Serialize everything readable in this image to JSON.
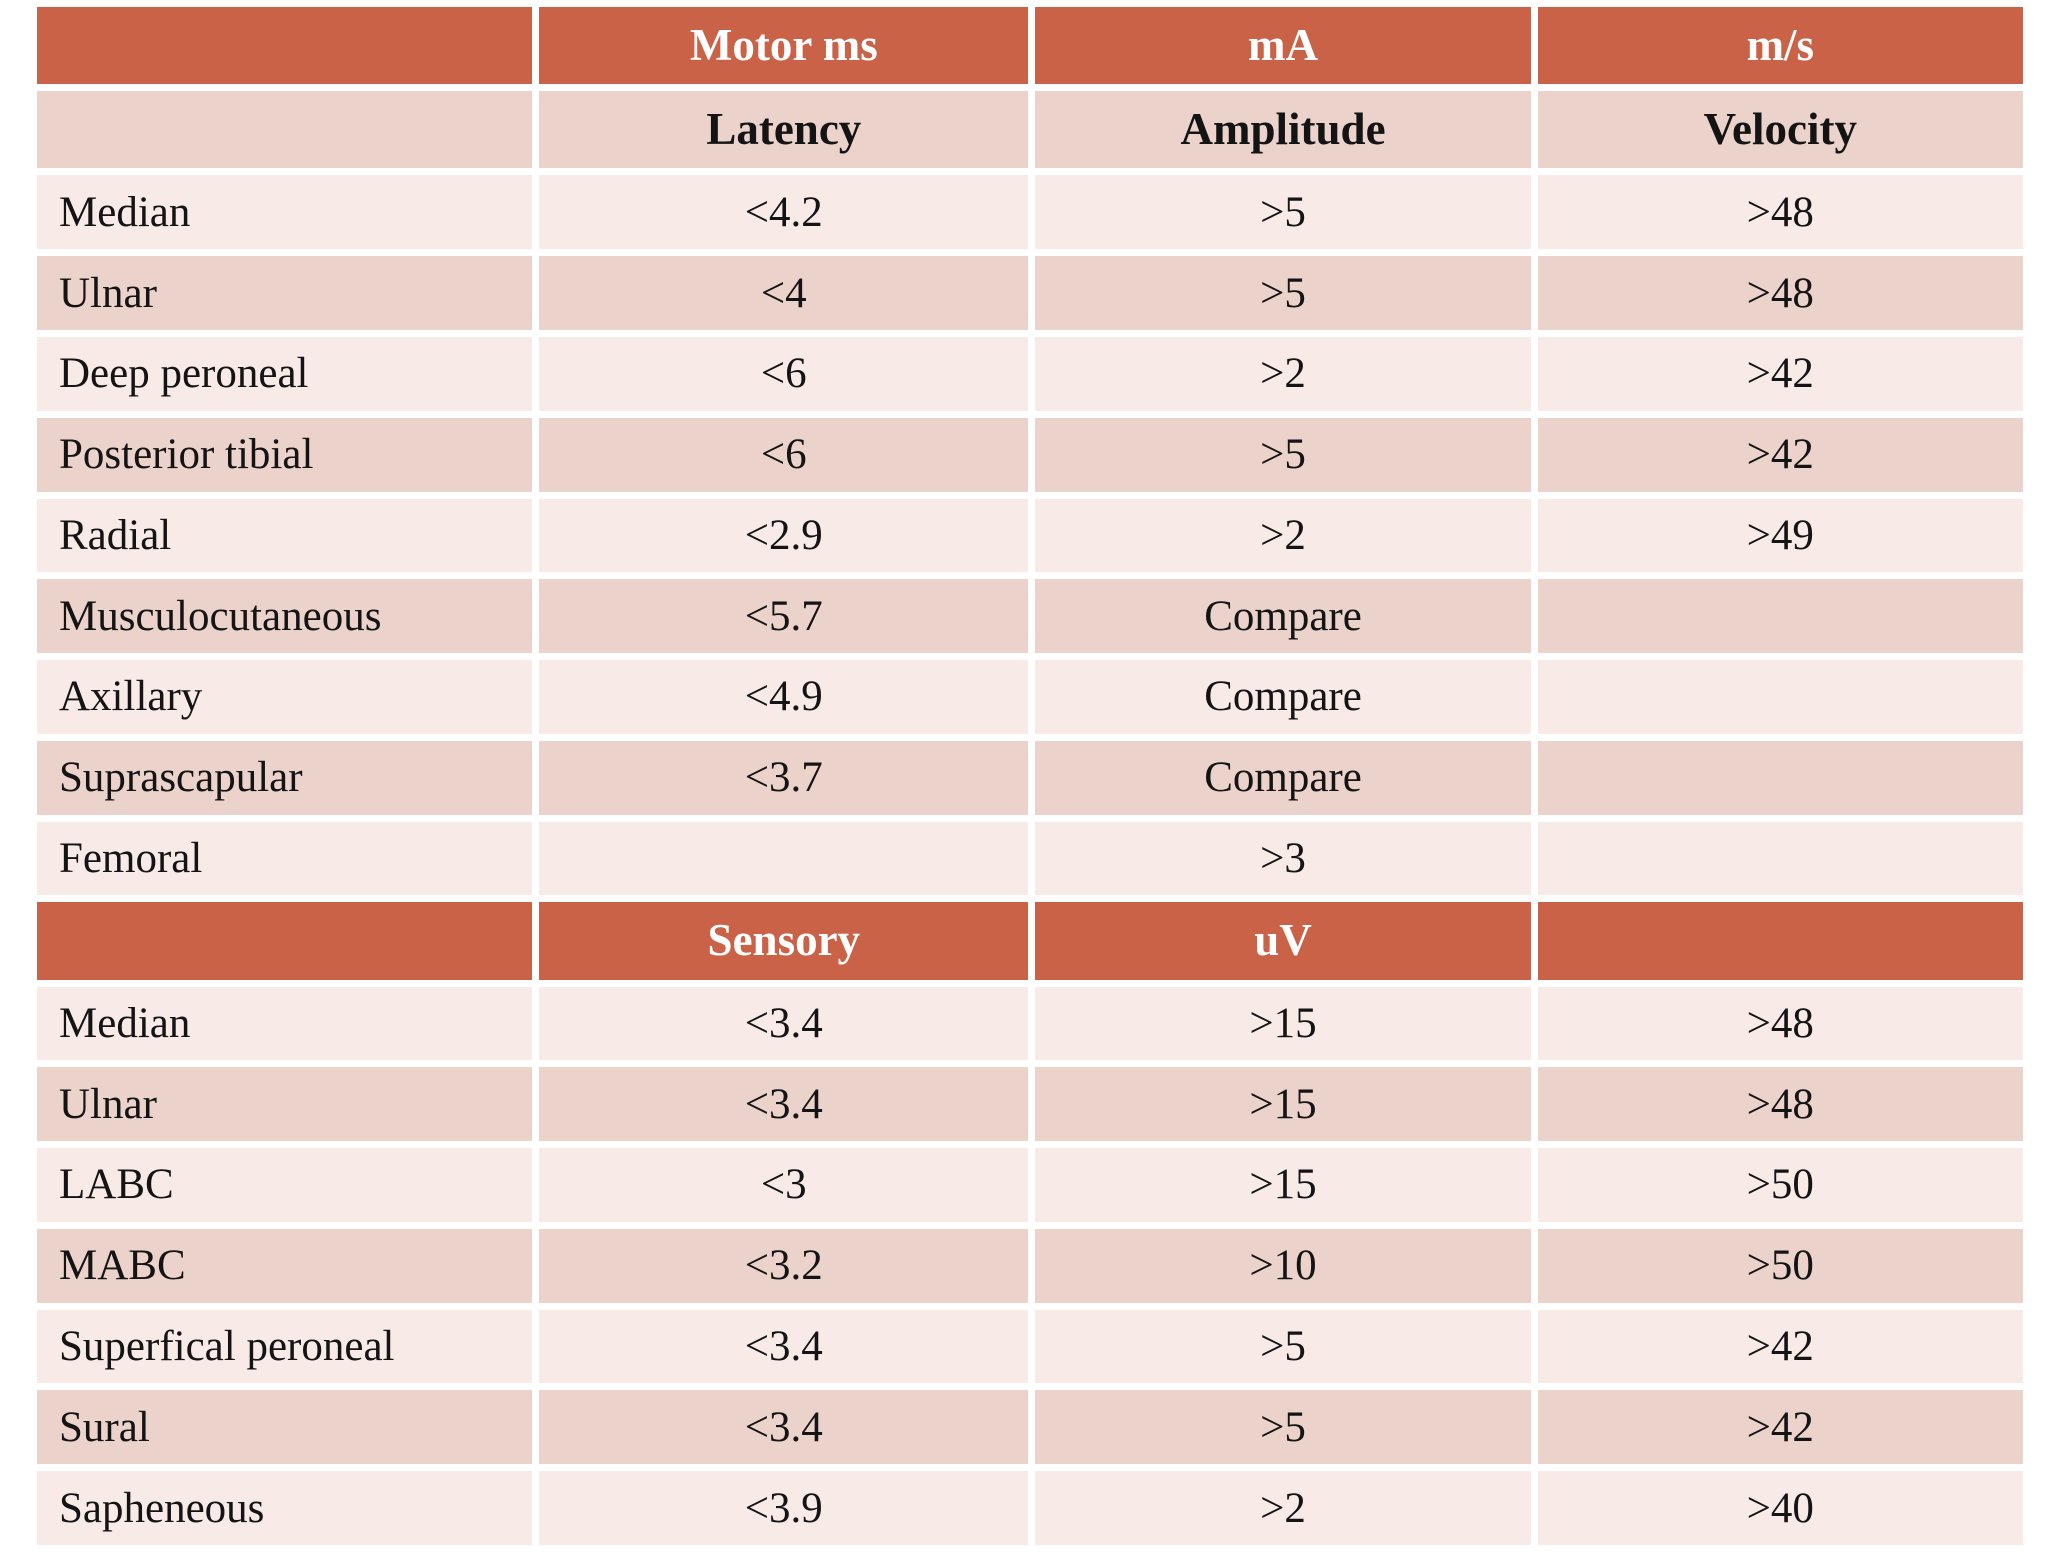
{
  "colors": {
    "header_bg": "#c96247",
    "band_dark": "#ebd2cb",
    "band_light": "#f8eae7",
    "header_text": "#ffffff",
    "body_text": "#141414"
  },
  "motor": {
    "unit_header": {
      "c0": "",
      "c1": "Motor ms",
      "c2": "mA",
      "c3": "m/s"
    },
    "measure_header": {
      "c0": "",
      "c1": "Latency",
      "c2": "Amplitude",
      "c3": "Velocity"
    },
    "rows": [
      {
        "label": "Median",
        "latency": "<4.2",
        "amplitude": ">5",
        "velocity": ">48"
      },
      {
        "label": "Ulnar",
        "latency": "<4",
        "amplitude": ">5",
        "velocity": ">48"
      },
      {
        "label": "Deep peroneal",
        "latency": "<6",
        "amplitude": ">2",
        "velocity": ">42"
      },
      {
        "label": "Posterior tibial",
        "latency": "<6",
        "amplitude": ">5",
        "velocity": ">42"
      },
      {
        "label": "Radial",
        "latency": "<2.9",
        "amplitude": ">2",
        "velocity": ">49"
      },
      {
        "label": "Musculocutaneous",
        "latency": "<5.7",
        "amplitude": "Compare",
        "velocity": ""
      },
      {
        "label": "Axillary",
        "latency": "<4.9",
        "amplitude": "Compare",
        "velocity": ""
      },
      {
        "label": "Suprascapular",
        "latency": "<3.7",
        "amplitude": "Compare",
        "velocity": ""
      },
      {
        "label": "Femoral",
        "latency": "",
        "amplitude": ">3",
        "velocity": ""
      }
    ]
  },
  "sensory": {
    "unit_header": {
      "c0": "",
      "c1": "Sensory",
      "c2": "uV",
      "c3": ""
    },
    "rows": [
      {
        "label": "Median",
        "latency": "<3.4",
        "amplitude": ">15",
        "velocity": ">48"
      },
      {
        "label": "Ulnar",
        "latency": "<3.4",
        "amplitude": ">15",
        "velocity": ">48"
      },
      {
        "label": "LABC",
        "latency": "<3",
        "amplitude": ">15",
        "velocity": ">50"
      },
      {
        "label": "MABC",
        "latency": "<3.2",
        "amplitude": ">10",
        "velocity": ">50"
      },
      {
        "label": "Superfical peroneal",
        "latency": "<3.4",
        "amplitude": ">5",
        "velocity": ">42"
      },
      {
        "label": "Sural",
        "latency": "<3.4",
        "amplitude": ">5",
        "velocity": ">42"
      },
      {
        "label": "Sapheneous",
        "latency": "<3.9",
        "amplitude": ">2",
        "velocity": ">40"
      }
    ]
  }
}
